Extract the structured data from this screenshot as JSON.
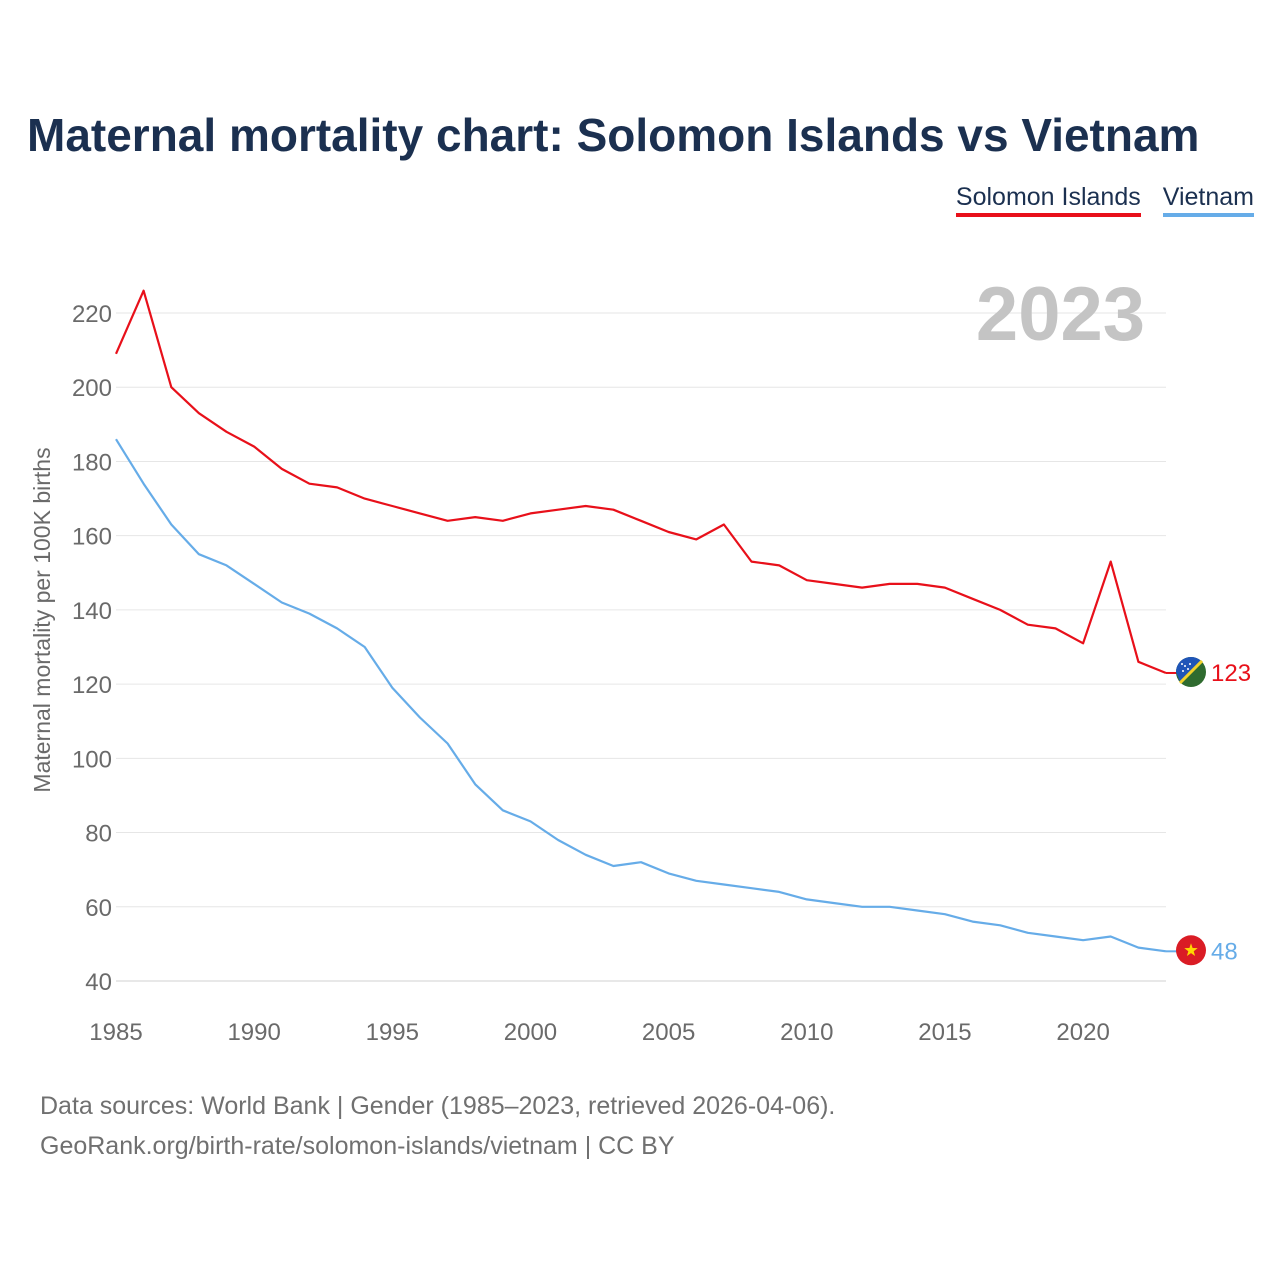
{
  "title": "Maternal mortality chart: Solomon Islands vs Vietnam",
  "legend": [
    {
      "label": "Solomon Islands",
      "color": "#e8101a"
    },
    {
      "label": "Vietnam",
      "color": "#66ace8"
    }
  ],
  "footer": {
    "line1": "Data sources: World Bank | Gender (1985–2023, retrieved 2026-04-06).",
    "line2": "GeoRank.org/birth-rate/solomon-islands/vietnam | CC BY"
  },
  "chart_data": {
    "type": "line",
    "year_label": "2023",
    "ylabel": "Maternal mortality per 100K births",
    "xlim": [
      1985,
      2023
    ],
    "ylim": [
      40,
      226
    ],
    "y_ticks": [
      40,
      60,
      80,
      100,
      120,
      140,
      160,
      180,
      200,
      220
    ],
    "x_ticks": [
      1985,
      1990,
      1995,
      2000,
      2005,
      2010,
      2015,
      2020
    ],
    "grid": true,
    "x": [
      1985,
      1986,
      1987,
      1988,
      1989,
      1990,
      1991,
      1992,
      1993,
      1994,
      1995,
      1996,
      1997,
      1998,
      1999,
      2000,
      2001,
      2002,
      2003,
      2004,
      2005,
      2006,
      2007,
      2008,
      2009,
      2010,
      2011,
      2012,
      2013,
      2014,
      2015,
      2016,
      2017,
      2018,
      2019,
      2020,
      2021,
      2022,
      2023
    ],
    "series": [
      {
        "name": "Solomon Islands",
        "color": "#e8101a",
        "end_label": "123",
        "values": [
          209,
          226,
          200,
          193,
          188,
          184,
          178,
          174,
          173,
          170,
          168,
          166,
          164,
          165,
          164,
          166,
          167,
          168,
          167,
          164,
          161,
          159,
          163,
          153,
          152,
          148,
          147,
          146,
          147,
          147,
          146,
          143,
          140,
          136,
          135,
          131,
          153,
          126,
          123
        ]
      },
      {
        "name": "Vietnam",
        "color": "#66ace8",
        "end_label": "48",
        "values": [
          186,
          174,
          163,
          155,
          152,
          147,
          142,
          139,
          135,
          130,
          119,
          111,
          104,
          93,
          86,
          83,
          78,
          74,
          71,
          72,
          69,
          67,
          66,
          65,
          64,
          62,
          61,
          60,
          60,
          59,
          58,
          56,
          55,
          53,
          52,
          51,
          52,
          49,
          48
        ]
      }
    ]
  }
}
